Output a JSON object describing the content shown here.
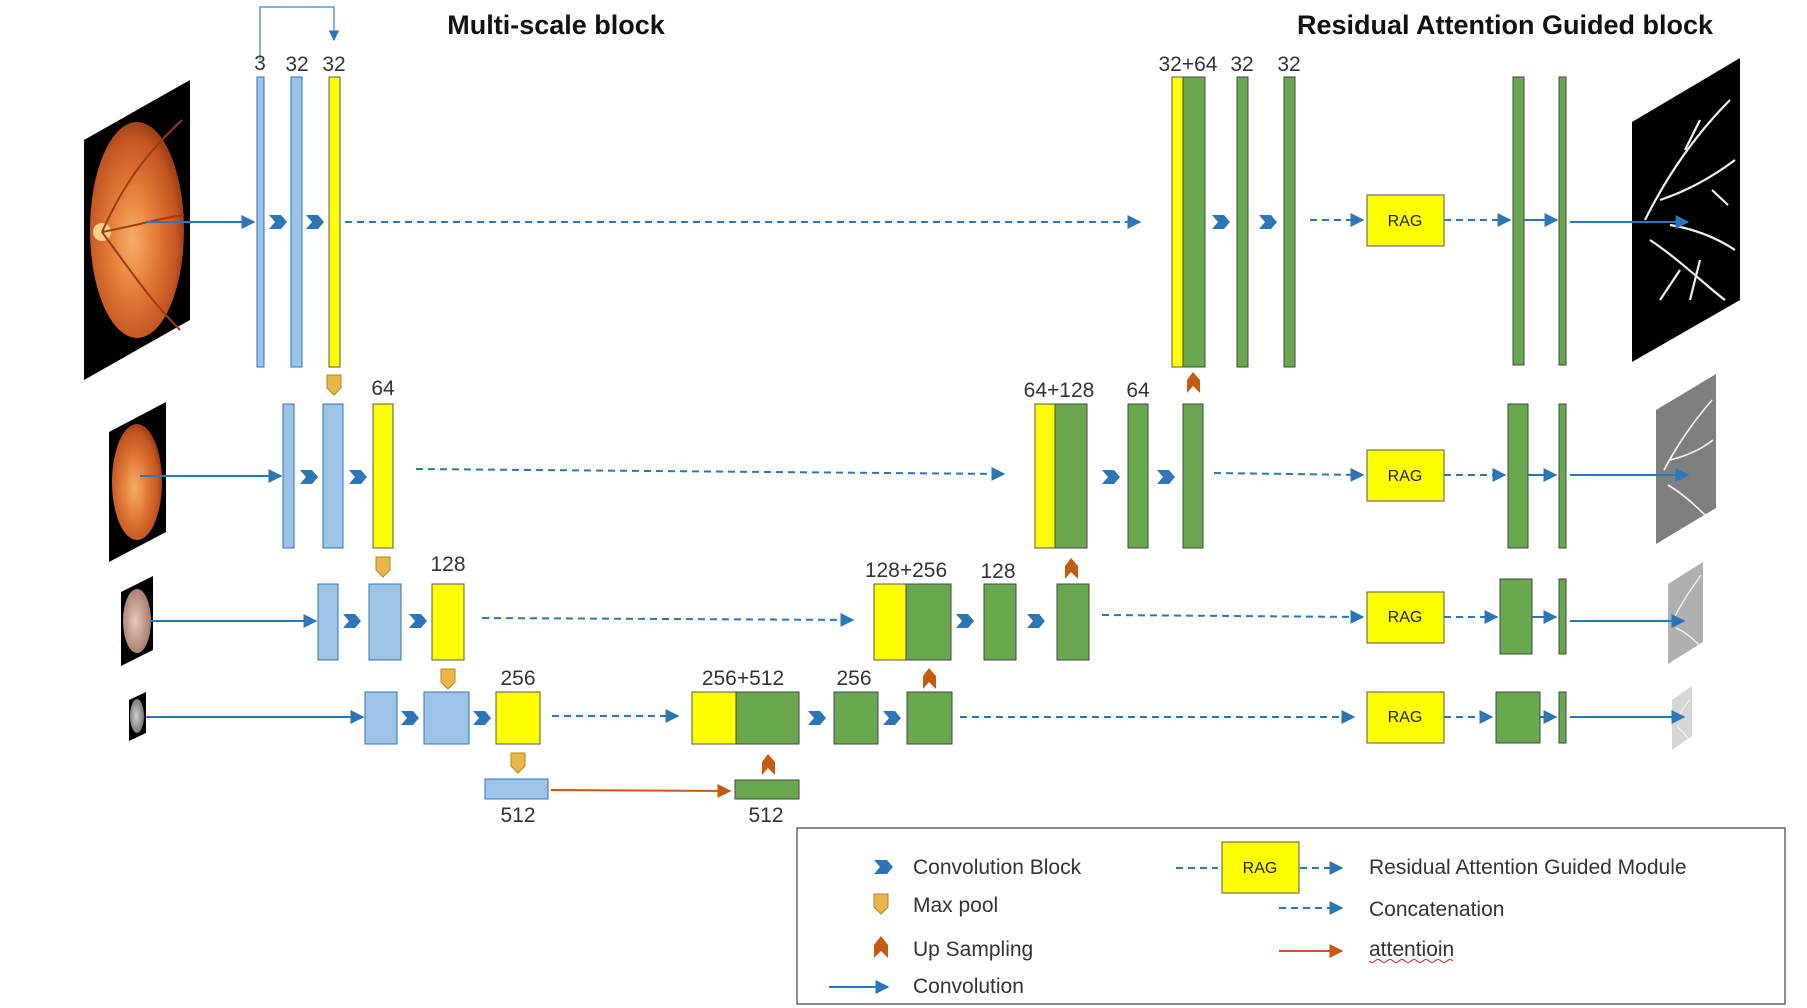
{
  "titles": {
    "left": "Multi-scale block",
    "right": "Residual Attention Guided block"
  },
  "colors": {
    "encoder_blue": "#9dc3e6",
    "skip_yellow": "#ffff00",
    "decoder_green": "#6aa84f",
    "arrow_blue": "#2e75b6",
    "attention_orange": "#c55a11",
    "pool_gold": "#e8b84a",
    "upsample_brown": "#c55a11"
  },
  "labels": {
    "l1_in": "3",
    "l1_c1": "32",
    "l1_c2": "32",
    "l1_cat": "32+64",
    "l1_d1": "32",
    "l1_d2": "32",
    "l2_c": "64",
    "l2_cat": "64+128",
    "l2_d": "64",
    "l3_c": "128",
    "l3_cat": "128+256",
    "l3_d": "128",
    "l4_c": "256",
    "l4_cat": "256+512",
    "l4_d": "256",
    "bottom_left": "512",
    "bottom_right": "512"
  },
  "rag_label": "RAG",
  "legend": {
    "conv_block": "Convolution Block",
    "max_pool": "Max pool",
    "up_sampling": "Up Sampling",
    "convolution": "Convolution",
    "rag_box": "RAG",
    "rag_module": "Residual Attention Guided Module",
    "concatenation": "Concatenation",
    "attention": "attentioin"
  },
  "icons": [
    "convolution-block-icon",
    "max-pool-icon",
    "up-sampling-icon",
    "fundus-image",
    "vessel-map-image"
  ]
}
